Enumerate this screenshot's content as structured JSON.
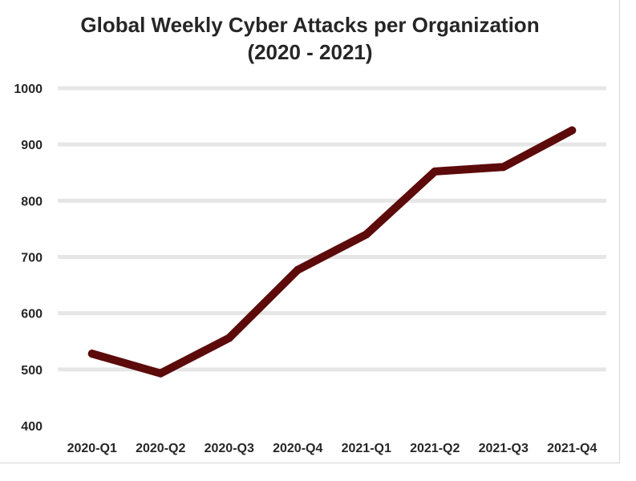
{
  "chart_data": {
    "type": "line",
    "title": "Global Weekly Cyber Attacks per Organization",
    "subtitle": "(2020 - 2021)",
    "categories": [
      "2020-Q1",
      "2020-Q2",
      "2020-Q3",
      "2020-Q4",
      "2021-Q1",
      "2021-Q2",
      "2021-Q3",
      "2021-Q4"
    ],
    "series": [
      {
        "values": [
          528,
          493,
          556,
          677,
          740,
          852,
          860,
          925
        ]
      }
    ],
    "yticks": [
      400,
      500,
      600,
      700,
      800,
      900,
      1000
    ],
    "ylim": [
      400,
      1000
    ],
    "grid": true,
    "legend": "none",
    "line_color": "#5c0a0a"
  }
}
